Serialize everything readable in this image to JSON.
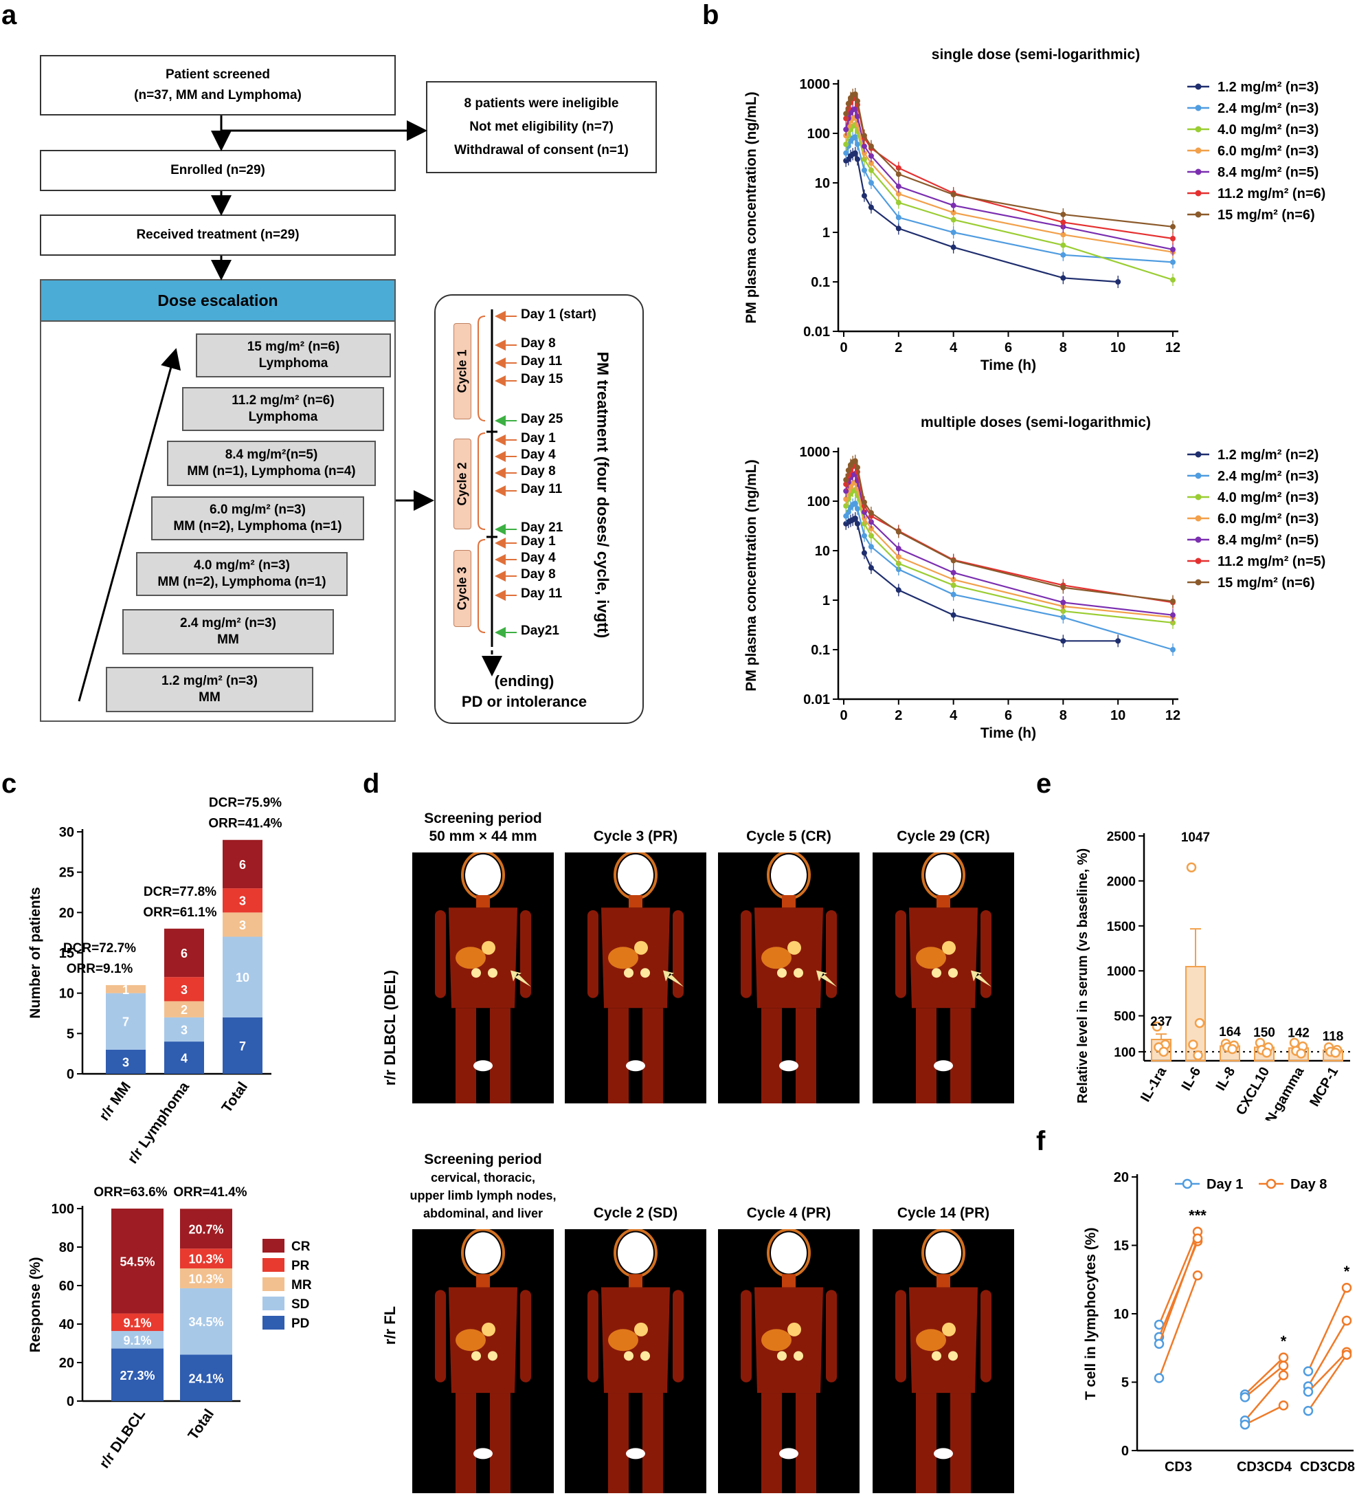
{
  "panels": {
    "a": "a",
    "b": "b",
    "c": "c",
    "d": "d",
    "e": "e",
    "f": "f"
  },
  "panel_a": {
    "screened": [
      "Patient screened",
      "(n=37, MM and Lymphoma)"
    ],
    "ineligible": [
      "8 patients were ineligible",
      "Not met eligibility (n=7)",
      "Withdrawal of consent (n=1)"
    ],
    "enrolled": "Enrolled (n=29)",
    "treatment": "Received treatment (n=29)",
    "dose_header": "Dose escalation",
    "doses": [
      {
        "dose": "15 mg/m² (n=6)",
        "group": "Lymphoma"
      },
      {
        "dose": "11.2 mg/m² (n=6)",
        "group": "Lymphoma"
      },
      {
        "dose": "8.4 mg/m²(n=5)",
        "group": "MM (n=1), Lymphoma (n=4)"
      },
      {
        "dose": "6.0 mg/m² (n=3)",
        "group": "MM (n=2), Lymphoma (n=1)"
      },
      {
        "dose": "4.0 mg/m² (n=3)",
        "group": "MM (n=2), Lymphoma (n=1)"
      },
      {
        "dose": "2.4 mg/m² (n=3)",
        "group": "MM"
      },
      {
        "dose": "1.2 mg/m² (n=3)",
        "group": "MM"
      }
    ],
    "schedule": {
      "title": "PM treatment (four doses/ cycle, ivgtt)",
      "cycles": [
        "Cycle 1",
        "Cycle 2",
        "Cycle 3"
      ],
      "days": [
        "Day 1 (start)",
        "Day 8",
        "Day 11",
        "Day 15",
        "Day 25",
        "Day 1",
        "Day 4",
        "Day 8",
        "Day 11",
        "Day 21",
        "Day 1",
        "Day 4",
        "Day 8",
        "Day 11",
        "Day21"
      ],
      "ending": [
        "(ending)",
        "PD or intolerance"
      ]
    }
  },
  "colors": {
    "dose_header": "#4bacd6",
    "cycle_fill": "#f6cdb5",
    "orange_arrow": "#e0703a",
    "green_arrow": "#3cb043",
    "s1": "#1f2e6e",
    "s2": "#4f9ce0",
    "s3": "#9acd32",
    "s4": "#f2a04a",
    "s5": "#7b2fb0",
    "s6": "#e53030",
    "s7": "#8b5a2b",
    "CR": "#9e1c23",
    "PR": "#e83a2f",
    "MR": "#f2c08e",
    "SD": "#a8c8e8",
    "PD": "#2f5db0",
    "bar_e": "#f2a04a",
    "day1": "#4f9ce0",
    "day8": "#f07a28"
  },
  "chart_data": [
    {
      "id": "b-single",
      "type": "line",
      "title": "single dose (semi-logarithmic)",
      "xlabel": "Time (h)",
      "ylabel": "PM plasma concentration (ng/mL)",
      "yscale": "log",
      "ylim": [
        0.01,
        1000
      ],
      "xlim": [
        0,
        12
      ],
      "xticks": [
        0,
        2,
        4,
        6,
        8,
        10,
        12
      ],
      "yticks": [
        "1000",
        "100",
        "10",
        "1",
        "0.1",
        "0.01"
      ],
      "x": [
        0.08,
        0.17,
        0.25,
        0.33,
        0.42,
        0.5,
        0.75,
        1,
        2,
        4,
        8,
        12
      ],
      "series": [
        {
          "name": "1.2 mg/m² (n=3)",
          "values": [
            28,
            30,
            35,
            38,
            40,
            30,
            5.5,
            3.2,
            1.2,
            0.5,
            0.12,
            null
          ],
          "tail": [
            [
              10,
              0.1
            ]
          ]
        },
        {
          "name": "2.4 mg/m² (n=3)",
          "values": [
            40,
            55,
            70,
            80,
            85,
            60,
            18,
            10,
            2.0,
            1.0,
            0.35,
            0.25
          ]
        },
        {
          "name": "4.0 mg/m² (n=3)",
          "values": [
            60,
            90,
            120,
            140,
            150,
            110,
            30,
            18,
            4.0,
            1.8,
            0.55,
            0.11
          ]
        },
        {
          "name": "6.0 mg/m² (n=3)",
          "values": [
            90,
            140,
            180,
            200,
            210,
            150,
            40,
            25,
            6.0,
            2.5,
            0.9,
            0.4
          ]
        },
        {
          "name": "8.4 mg/m² (n=5)",
          "values": [
            120,
            200,
            260,
            300,
            310,
            220,
            55,
            35,
            8.5,
            3.5,
            1.3,
            0.45
          ]
        },
        {
          "name": "11.2 mg/m² (n=6)",
          "values": [
            200,
            320,
            420,
            500,
            520,
            380,
            80,
            50,
            20,
            6.2,
            1.6,
            0.75
          ]
        },
        {
          "name": "15 mg/m² (n=6)",
          "values": [
            250,
            400,
            520,
            600,
            620,
            450,
            90,
            55,
            15,
            5.8,
            2.3,
            1.3
          ]
        }
      ]
    },
    {
      "id": "b-multiple",
      "type": "line",
      "title": "multiple doses (semi-logarithmic)",
      "xlabel": "Time (h)",
      "ylabel": "PM plasma concentration (ng/mL)",
      "yscale": "log",
      "ylim": [
        0.01,
        1000
      ],
      "xlim": [
        0,
        12
      ],
      "xticks": [
        0,
        2,
        4,
        6,
        8,
        10,
        12
      ],
      "yticks": [
        "1000",
        "100",
        "10",
        "1",
        "0.1",
        "0.01"
      ],
      "x": [
        0.08,
        0.17,
        0.25,
        0.33,
        0.42,
        0.5,
        0.75,
        1,
        2,
        4,
        8,
        12
      ],
      "series": [
        {
          "name": "1.2 mg/m² (n=2)",
          "values": [
            35,
            38,
            40,
            42,
            45,
            35,
            9,
            4.5,
            1.6,
            0.5,
            0.15,
            null
          ],
          "tail": [
            [
              10,
              0.15
            ]
          ]
        },
        {
          "name": "2.4 mg/m² (n=3)",
          "values": [
            50,
            60,
            75,
            85,
            90,
            70,
            20,
            12,
            4.2,
            1.3,
            0.45,
            0.1
          ]
        },
        {
          "name": "4.0 mg/m² (n=3)",
          "values": [
            80,
            110,
            140,
            160,
            170,
            130,
            35,
            20,
            5.5,
            2.0,
            0.6,
            0.35
          ]
        },
        {
          "name": "6.0 mg/m² (n=3)",
          "values": [
            110,
            160,
            200,
            230,
            240,
            180,
            45,
            28,
            7.5,
            2.6,
            0.75,
            0.45
          ]
        },
        {
          "name": "8.4 mg/m² (n=5)",
          "values": [
            160,
            240,
            300,
            340,
            360,
            260,
            60,
            38,
            11,
            3.6,
            0.9,
            0.5
          ]
        },
        {
          "name": "11.2 mg/m² (n=5)",
          "values": [
            220,
            330,
            420,
            500,
            520,
            390,
            80,
            50,
            25,
            6.5,
            2.0,
            0.9
          ]
        },
        {
          "name": "15 mg/m² (n=6)",
          "values": [
            270,
            420,
            540,
            620,
            650,
            480,
            95,
            58,
            24,
            6.3,
            1.8,
            0.95
          ]
        }
      ]
    },
    {
      "id": "c-top",
      "type": "bar",
      "stacked": true,
      "ylabel": "Number of patients",
      "ylim": [
        0,
        30
      ],
      "yticks": [
        0,
        5,
        10,
        15,
        20,
        25,
        30
      ],
      "categories": [
        "r/r MM",
        "r/r Lymphoma",
        "Total"
      ],
      "series": [
        {
          "name": "PD",
          "values": [
            3,
            4,
            7
          ]
        },
        {
          "name": "SD",
          "values": [
            7,
            3,
            10
          ]
        },
        {
          "name": "MR",
          "values": [
            1,
            2,
            3
          ]
        },
        {
          "name": "PR",
          "values": [
            0,
            3,
            3
          ]
        },
        {
          "name": "CR",
          "values": [
            0,
            6,
            6
          ]
        }
      ],
      "labels": [
        [
          "3",
          "7",
          "1",
          "",
          ""
        ],
        [
          "4",
          "3",
          "2",
          "3",
          "6"
        ],
        [
          "7",
          "10",
          "3",
          "3",
          "6"
        ]
      ],
      "annotations": [
        [
          "DCR=72.7%",
          "ORR=9.1%"
        ],
        [
          "DCR=77.8%",
          "ORR=61.1%"
        ],
        [
          "DCR=75.9%",
          "ORR=41.4%"
        ]
      ]
    },
    {
      "id": "c-bottom",
      "type": "bar",
      "stacked": true,
      "ylabel": "Response (%)",
      "ylim": [
        0,
        100
      ],
      "yticks": [
        0,
        20,
        40,
        60,
        80,
        100
      ],
      "categories": [
        "r/r DLBCL",
        "Total"
      ],
      "series": [
        {
          "name": "PD",
          "values": [
            27.3,
            24.1
          ]
        },
        {
          "name": "SD",
          "values": [
            9.1,
            34.5
          ]
        },
        {
          "name": "MR",
          "values": [
            0,
            10.3
          ]
        },
        {
          "name": "PR",
          "values": [
            9.1,
            10.3
          ]
        },
        {
          "name": "CR",
          "values": [
            54.5,
            20.7
          ]
        }
      ],
      "labels": [
        [
          "27.3%",
          "9.1%",
          "",
          "9.1%",
          "54.5%"
        ],
        [
          "24.1%",
          "34.5%",
          "10.3%",
          "10.3%",
          "20.7%"
        ]
      ],
      "annotations": [
        "ORR=63.6%",
        "ORR=41.4%"
      ],
      "legend": [
        "CR",
        "PR",
        "MR",
        "SD",
        "PD"
      ]
    },
    {
      "id": "e",
      "type": "bar",
      "ylabel": "Relative level in serum (vs baseline, %)",
      "ylim": [
        0,
        2500
      ],
      "yticks": [
        100,
        500,
        1000,
        1500,
        2000,
        2500
      ],
      "categories": [
        "IL-1ra",
        "IL-6",
        "IL-8",
        "CXCL10",
        "IFN-gamma",
        "MCP-1"
      ],
      "values": [
        237,
        1047,
        164,
        150,
        142,
        118
      ],
      "value_labels": [
        "237",
        "1047",
        "164",
        "150",
        "142",
        "118"
      ],
      "errors": [
        60,
        420,
        20,
        25,
        30,
        15
      ],
      "points": [
        [
          380,
          180,
          150,
          100
        ],
        [
          2150,
          420,
          180,
          60
        ],
        [
          190,
          170,
          150,
          130
        ],
        [
          200,
          150,
          120,
          90
        ],
        [
          200,
          160,
          110,
          80
        ],
        [
          150,
          120,
          100,
          90
        ]
      ]
    },
    {
      "id": "f",
      "type": "scatter",
      "ylabel": "T cell in lymphocytes (%)",
      "ylim": [
        0,
        20
      ],
      "yticks": [
        0,
        5,
        10,
        15,
        20
      ],
      "categories": [
        "CD3",
        "CD3CD4",
        "CD3CD8"
      ],
      "legend": [
        "Day 1",
        "Day 8"
      ],
      "significance": [
        "***",
        "*",
        "*"
      ],
      "pairs": [
        [
          [
            9.2,
            16.0
          ],
          [
            8.3,
            15.3
          ],
          [
            7.8,
            15.5
          ],
          [
            5.3,
            12.8
          ]
        ],
        [
          [
            4.1,
            6.8
          ],
          [
            3.9,
            6.2
          ],
          [
            2.2,
            5.5
          ],
          [
            1.9,
            3.3
          ]
        ],
        [
          [
            5.8,
            11.9
          ],
          [
            4.7,
            9.5
          ],
          [
            4.3,
            7.2
          ],
          [
            2.9,
            7.0
          ]
        ]
      ]
    }
  ],
  "panel_d": {
    "row1_label": "r/r DLBCL (DEL)",
    "row2_label": "r/r FL",
    "row1_titles": [
      [
        "Screening period",
        "50 mm × 44 mm"
      ],
      [
        "Cycle 3 (PR)"
      ],
      [
        "Cycle 5 (CR)"
      ],
      [
        "Cycle 29 (CR)"
      ]
    ],
    "row2_titles": [
      [
        "Screening period",
        "cervical, thoracic,",
        "upper limb lymph nodes,",
        "abdominal, and liver"
      ],
      [
        "Cycle 2 (SD)"
      ],
      [
        "Cycle 4 (PR)"
      ],
      [
        "Cycle 14 (PR)"
      ]
    ]
  }
}
